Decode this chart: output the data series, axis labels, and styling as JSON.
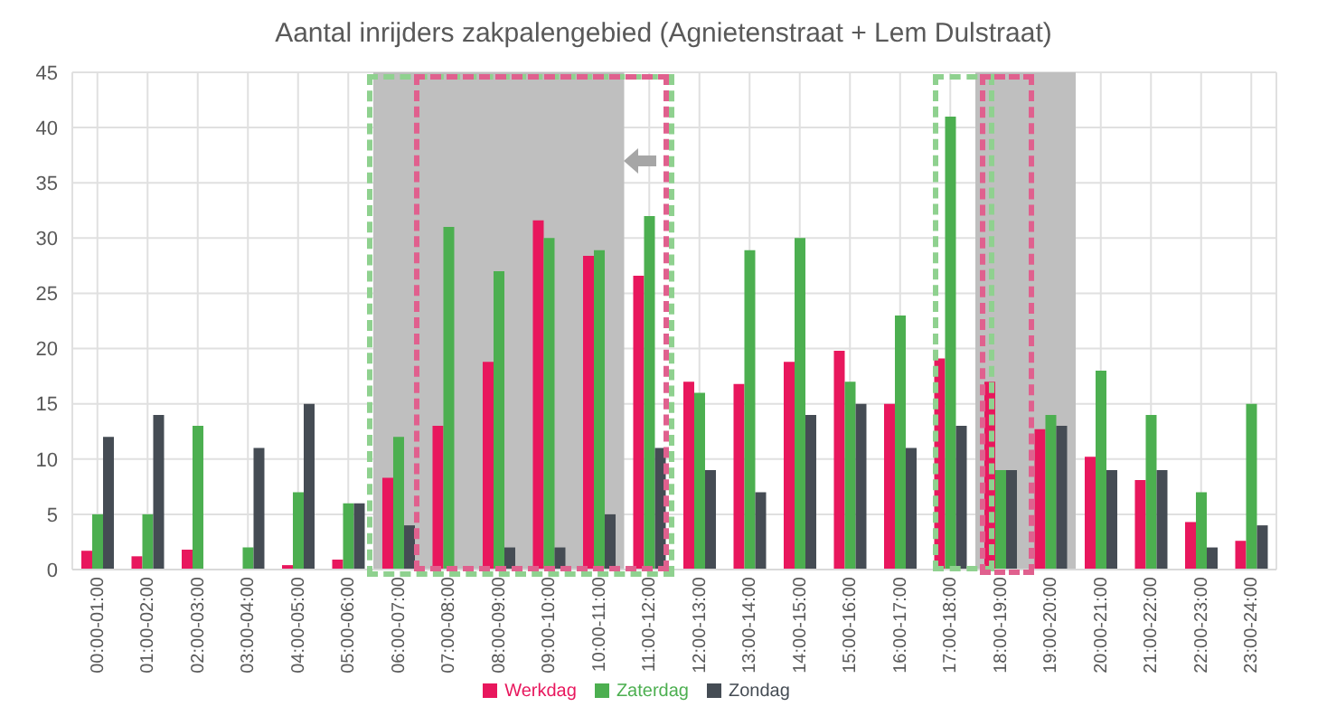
{
  "chart_data": {
    "type": "bar",
    "title": "Aantal inrijders zakpalengebied (Agnietenstraat + Lem Dulstraat)",
    "categories": [
      "00:00-01:00",
      "01:00-02:00",
      "02:00-03:00",
      "03:00-04:00",
      "04:00-05:00",
      "05:00-06:00",
      "06:00-07:00",
      "07:00-08:00",
      "08:00-09:00",
      "09:00-10:00",
      "10:00-11:00",
      "11:00-12:00",
      "12:00-13:00",
      "13:00-14:00",
      "14:00-15:00",
      "15:00-16:00",
      "16:00-17:00",
      "17:00-18:00",
      "18:00-19:00",
      "19:00-20:00",
      "20:00-21:00",
      "21:00-22:00",
      "22:00-23:00",
      "23:00-24:00"
    ],
    "series": [
      {
        "name": "Werkdag",
        "color": "#e8175d",
        "values": [
          1.7,
          1.2,
          1.8,
          0,
          0.4,
          0.9,
          8.3,
          13,
          18.8,
          31.6,
          28.4,
          26.6,
          17,
          16.8,
          18.8,
          19.8,
          15,
          19.1,
          17,
          12.7,
          10.2,
          8.1,
          4.3,
          2.6
        ]
      },
      {
        "name": "Zaterdag",
        "color": "#4caf50",
        "values": [
          5,
          5,
          13,
          2,
          7,
          6,
          12,
          31,
          27,
          30,
          28.9,
          32,
          16,
          28.9,
          30,
          17,
          23,
          41,
          9,
          14,
          18,
          14,
          7,
          15
        ]
      },
      {
        "name": "Zondag",
        "color": "#454c54",
        "values": [
          12,
          14,
          0,
          11,
          15,
          6,
          4,
          0,
          2,
          2,
          5,
          11,
          9,
          7,
          14,
          15,
          11,
          13,
          9,
          13,
          9,
          9,
          2,
          4
        ]
      }
    ],
    "ylim": [
      0,
      45
    ],
    "yticks": [
      0,
      5,
      10,
      15,
      20,
      25,
      30,
      35,
      40,
      45
    ],
    "grid": true,
    "legend": "bottom",
    "bands": [
      {
        "axis": "x",
        "from": "06:00-07:00",
        "to": "10:00-11:00",
        "color": "#bfbfbf"
      },
      {
        "axis": "x",
        "from": "18:00-19:00",
        "to": "19:00-20:00",
        "color": "#bfbfbf"
      }
    ]
  }
}
